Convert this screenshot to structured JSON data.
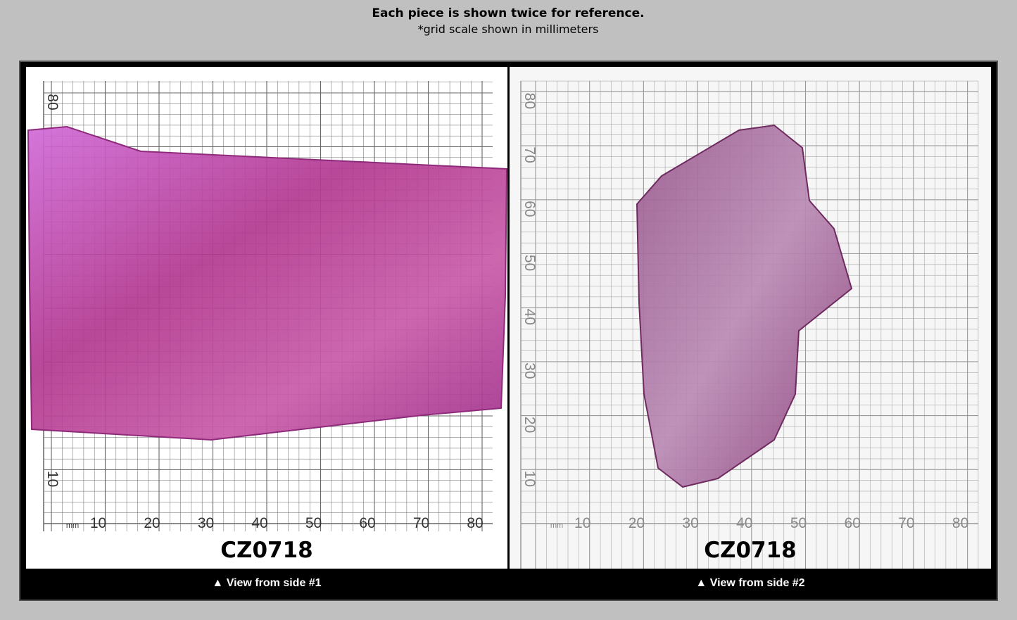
{
  "header": {
    "title": "Each piece is shown twice for reference.",
    "subtitle": "*grid scale shown in millimeters"
  },
  "panels": [
    {
      "code": "CZ0718",
      "caption": "▲ View from side #1",
      "scale": {
        "unit": "mm",
        "x_labels": [
          "10",
          "20",
          "30",
          "40",
          "50",
          "60",
          "70",
          "80"
        ],
        "y_labels": [
          "80",
          "10"
        ]
      }
    },
    {
      "code": "CZ0718",
      "caption": "▲ View from side #2",
      "scale": {
        "unit": "mm",
        "x_labels": [
          "10",
          "20",
          "30",
          "40",
          "50",
          "60",
          "70",
          "80"
        ],
        "y_labels": [
          "80",
          "70",
          "60",
          "50",
          "40",
          "30",
          "20",
          "10"
        ]
      }
    }
  ]
}
